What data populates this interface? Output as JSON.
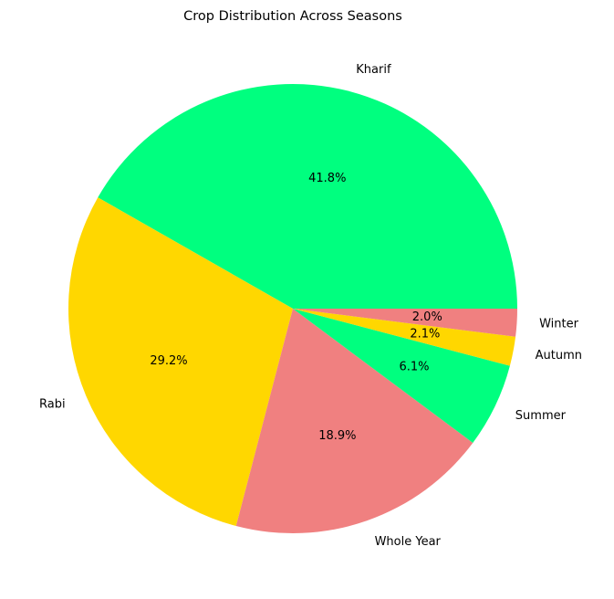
{
  "chart_data": {
    "type": "pie",
    "title": "Crop Distribution Across Seasons",
    "categories": [
      "Kharif",
      "Rabi",
      "Whole Year",
      "Summer",
      "Autumn",
      "Winter"
    ],
    "values": [
      41.8,
      29.2,
      18.9,
      6.1,
      2.1,
      2.0
    ],
    "percent_labels": [
      "41.8%",
      "29.2%",
      "18.9%",
      "6.1%",
      "2.1%",
      "2.0%"
    ],
    "colors": [
      "#00ff7f",
      "#ffd700",
      "#f08080",
      "#00ff7f",
      "#ffd700",
      "#f08080"
    ],
    "start_angle_deg": 0,
    "direction": "counterclockwise",
    "legend": "none"
  }
}
